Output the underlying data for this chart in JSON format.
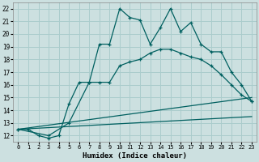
{
  "xlabel": "Humidex (Indice chaleur)",
  "bg_color": "#cce0e0",
  "grid_color": "#aacccc",
  "line_color": "#006060",
  "line_zigzag_x": [
    0,
    1,
    2,
    3,
    4,
    5,
    6,
    7,
    8,
    9,
    10,
    11,
    12,
    13,
    14,
    15,
    16,
    17,
    18,
    19,
    20,
    21,
    22,
    23
  ],
  "line_zigzag_y": [
    12.5,
    12.5,
    12.0,
    11.8,
    12.0,
    14.5,
    16.2,
    16.2,
    19.2,
    19.2,
    22.0,
    21.3,
    21.1,
    19.2,
    20.5,
    22.0,
    20.2,
    20.9,
    19.2,
    18.6,
    18.6,
    17.0,
    16.0,
    14.7
  ],
  "line2_x": [
    0,
    3,
    5,
    7,
    8,
    9,
    10,
    11,
    12,
    13,
    14,
    15,
    16,
    17,
    18,
    19,
    20,
    21,
    22,
    23
  ],
  "line2_y": [
    12.5,
    12.0,
    13.0,
    16.2,
    16.2,
    16.2,
    17.5,
    17.8,
    18.0,
    18.5,
    18.8,
    18.8,
    18.5,
    18.2,
    18.0,
    17.5,
    16.8,
    16.0,
    15.2,
    14.7
  ],
  "line3_x": [
    0,
    23
  ],
  "line3_y": [
    12.5,
    15.0
  ],
  "line4_x": [
    0,
    23
  ],
  "line4_y": [
    12.5,
    13.5
  ],
  "ylim": [
    11.5,
    22.5
  ],
  "xlim": [
    -0.5,
    23.5
  ],
  "yticks": [
    12,
    13,
    14,
    15,
    16,
    17,
    18,
    19,
    20,
    21,
    22
  ],
  "xticks": [
    0,
    1,
    2,
    3,
    4,
    5,
    6,
    7,
    8,
    9,
    10,
    11,
    12,
    13,
    14,
    15,
    16,
    17,
    18,
    19,
    20,
    21,
    22,
    23
  ]
}
